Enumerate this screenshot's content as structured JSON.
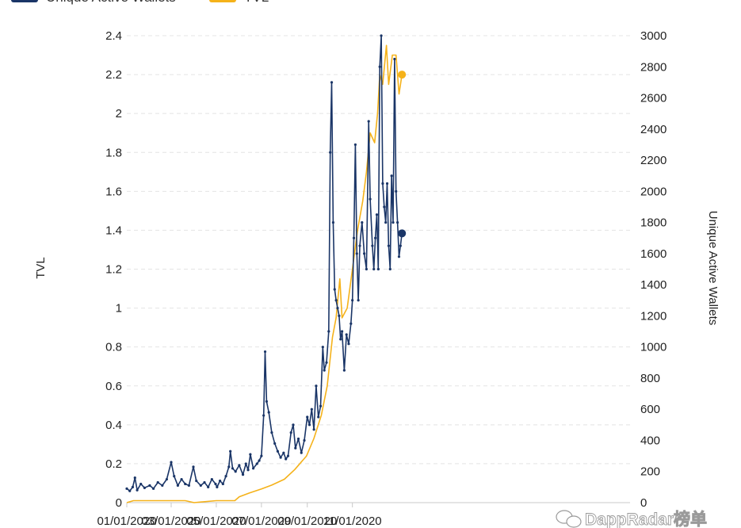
{
  "chart_data": {
    "type": "line",
    "legend": {
      "position": "top-left",
      "entries": [
        {
          "label": "Unique Active Wallets",
          "color": "#1a3567"
        },
        {
          "label": "TVL",
          "color": "#f5b21a"
        }
      ]
    },
    "x_axis": {
      "tick_labels": [
        "01/01/2020",
        "03/01/2020",
        "05/01/2020",
        "07/01/2020",
        "09/01/2020",
        "11/01/2020"
      ]
    },
    "y_left": {
      "label": "TVL",
      "range": [
        0,
        2.4
      ],
      "tick_labels": [
        "0",
        "0.2",
        "0.4",
        "0.6",
        "0.8",
        "1",
        "1.2",
        "1.4",
        "1.6",
        "1.8",
        "2",
        "2.2",
        "2.4"
      ]
    },
    "y_right": {
      "label": "Unique Active Wallets",
      "range": [
        0,
        3000
      ],
      "tick_labels": [
        "0",
        "200",
        "400",
        "600",
        "800",
        "1000",
        "1200",
        "1400",
        "1600",
        "1800",
        "2000",
        "2200",
        "2400",
        "2600",
        "2800",
        "3000"
      ]
    },
    "grid": "horizontal dashed",
    "series": [
      {
        "name": "Unique Active Wallets",
        "axis": "right",
        "color": "#1a3567",
        "markers": true,
        "points": [
          [
            "2020-01-01",
            90
          ],
          [
            "2020-01-05",
            75
          ],
          [
            "2020-01-09",
            100
          ],
          [
            "2020-01-12",
            160
          ],
          [
            "2020-01-15",
            80
          ],
          [
            "2020-01-20",
            120
          ],
          [
            "2020-01-25",
            95
          ],
          [
            "2020-02-01",
            110
          ],
          [
            "2020-02-06",
            90
          ],
          [
            "2020-02-12",
            130
          ],
          [
            "2020-02-18",
            110
          ],
          [
            "2020-02-24",
            150
          ],
          [
            "2020-03-01",
            260
          ],
          [
            "2020-03-05",
            170
          ],
          [
            "2020-03-10",
            110
          ],
          [
            "2020-03-15",
            150
          ],
          [
            "2020-03-20",
            120
          ],
          [
            "2020-03-25",
            110
          ],
          [
            "2020-03-31",
            230
          ],
          [
            "2020-04-04",
            140
          ],
          [
            "2020-04-10",
            110
          ],
          [
            "2020-04-15",
            130
          ],
          [
            "2020-04-20",
            100
          ],
          [
            "2020-04-25",
            150
          ],
          [
            "2020-04-30",
            120
          ],
          [
            "2020-05-02",
            100
          ],
          [
            "2020-05-06",
            140
          ],
          [
            "2020-05-10",
            120
          ],
          [
            "2020-05-14",
            170
          ],
          [
            "2020-05-18",
            230
          ],
          [
            "2020-05-20",
            330
          ],
          [
            "2020-05-23",
            220
          ],
          [
            "2020-05-27",
            200
          ],
          [
            "2020-06-01",
            240
          ],
          [
            "2020-06-06",
            180
          ],
          [
            "2020-06-10",
            250
          ],
          [
            "2020-06-13",
            210
          ],
          [
            "2020-06-16",
            310
          ],
          [
            "2020-06-20",
            220
          ],
          [
            "2020-06-25",
            250
          ],
          [
            "2020-06-28",
            270
          ],
          [
            "2020-07-01",
            300
          ],
          [
            "2020-07-04",
            560
          ],
          [
            "2020-07-06",
            970
          ],
          [
            "2020-07-08",
            650
          ],
          [
            "2020-07-11",
            580
          ],
          [
            "2020-07-15",
            450
          ],
          [
            "2020-07-19",
            380
          ],
          [
            "2020-07-23",
            330
          ],
          [
            "2020-07-27",
            290
          ],
          [
            "2020-07-31",
            320
          ],
          [
            "2020-08-03",
            280
          ],
          [
            "2020-08-06",
            300
          ],
          [
            "2020-08-10",
            450
          ],
          [
            "2020-08-13",
            500
          ],
          [
            "2020-08-16",
            350
          ],
          [
            "2020-08-20",
            410
          ],
          [
            "2020-08-24",
            320
          ],
          [
            "2020-08-28",
            400
          ],
          [
            "2020-09-01",
            550
          ],
          [
            "2020-09-04",
            500
          ],
          [
            "2020-09-07",
            600
          ],
          [
            "2020-09-10",
            470
          ],
          [
            "2020-09-13",
            750
          ],
          [
            "2020-09-16",
            550
          ],
          [
            "2020-09-19",
            620
          ],
          [
            "2020-09-22",
            1000
          ],
          [
            "2020-09-24",
            850
          ],
          [
            "2020-09-27",
            900
          ],
          [
            "2020-09-30",
            1100
          ],
          [
            "2020-10-02",
            2250
          ],
          [
            "2020-10-04",
            2700
          ],
          [
            "2020-10-06",
            1800
          ],
          [
            "2020-10-08",
            1370
          ],
          [
            "2020-10-10",
            1300
          ],
          [
            "2020-10-12",
            1250
          ],
          [
            "2020-10-14",
            1200
          ],
          [
            "2020-10-16",
            1050
          ],
          [
            "2020-10-18",
            1100
          ],
          [
            "2020-10-21",
            850
          ],
          [
            "2020-10-24",
            1080
          ],
          [
            "2020-10-27",
            1020
          ],
          [
            "2020-10-30",
            1150
          ],
          [
            "2020-11-01",
            1300
          ],
          [
            "2020-11-03",
            1700
          ],
          [
            "2020-11-05",
            2300
          ],
          [
            "2020-11-07",
            1600
          ],
          [
            "2020-11-09",
            1300
          ],
          [
            "2020-11-11",
            1650
          ],
          [
            "2020-11-14",
            1800
          ],
          [
            "2020-11-17",
            1600
          ],
          [
            "2020-11-20",
            1500
          ],
          [
            "2020-11-23",
            2450
          ],
          [
            "2020-11-25",
            1950
          ],
          [
            "2020-11-28",
            1650
          ],
          [
            "2020-11-30",
            1500
          ],
          [
            "2020-12-02",
            1700
          ],
          [
            "2020-12-04",
            1850
          ],
          [
            "2020-12-06",
            1500
          ],
          [
            "2020-12-08",
            2800
          ],
          [
            "2020-12-10",
            3000
          ],
          [
            "2020-12-12",
            2050
          ],
          [
            "2020-12-14",
            1900
          ],
          [
            "2020-12-16",
            1800
          ],
          [
            "2020-12-18",
            2050
          ],
          [
            "2020-12-20",
            1650
          ],
          [
            "2020-12-22",
            1500
          ],
          [
            "2020-12-24",
            2100
          ],
          [
            "2020-12-26",
            1800
          ],
          [
            "2020-12-28",
            2850
          ],
          [
            "2020-12-30",
            2000
          ],
          [
            "2021-01-01",
            1800
          ],
          [
            "2021-01-03",
            1580
          ],
          [
            "2021-01-05",
            1650
          ],
          [
            "2021-01-07",
            1730
          ]
        ]
      },
      {
        "name": "TVL",
        "axis": "left",
        "color": "#f5b21a",
        "markers": false,
        "points": [
          [
            "2020-01-01",
            0.0
          ],
          [
            "2020-01-10",
            0.01
          ],
          [
            "2020-03-20",
            0.01
          ],
          [
            "2020-04-01",
            0.0
          ],
          [
            "2020-05-01",
            0.01
          ],
          [
            "2020-05-26",
            0.01
          ],
          [
            "2020-06-01",
            0.03
          ],
          [
            "2020-06-15",
            0.05
          ],
          [
            "2020-07-01",
            0.07
          ],
          [
            "2020-07-15",
            0.09
          ],
          [
            "2020-08-01",
            0.12
          ],
          [
            "2020-08-15",
            0.17
          ],
          [
            "2020-08-31",
            0.24
          ],
          [
            "2020-09-10",
            0.33
          ],
          [
            "2020-09-20",
            0.45
          ],
          [
            "2020-09-28",
            0.6
          ],
          [
            "2020-10-05",
            0.85
          ],
          [
            "2020-10-10",
            0.95
          ],
          [
            "2020-10-15",
            1.15
          ],
          [
            "2020-10-18",
            0.95
          ],
          [
            "2020-10-25",
            1.0
          ],
          [
            "2020-11-01",
            1.2
          ],
          [
            "2020-11-08",
            1.4
          ],
          [
            "2020-11-15",
            1.55
          ],
          [
            "2020-11-20",
            1.7
          ],
          [
            "2020-11-25",
            1.9
          ],
          [
            "2020-12-01",
            1.85
          ],
          [
            "2020-12-05",
            2.0
          ],
          [
            "2020-12-08",
            2.2
          ],
          [
            "2020-12-12",
            2.15
          ],
          [
            "2020-12-17",
            2.35
          ],
          [
            "2020-12-20",
            2.15
          ],
          [
            "2020-12-25",
            2.3
          ],
          [
            "2020-12-30",
            2.3
          ],
          [
            "2021-01-03",
            2.1
          ],
          [
            "2021-01-07",
            2.2
          ]
        ]
      }
    ],
    "watermark": "DappRadar榜单"
  }
}
